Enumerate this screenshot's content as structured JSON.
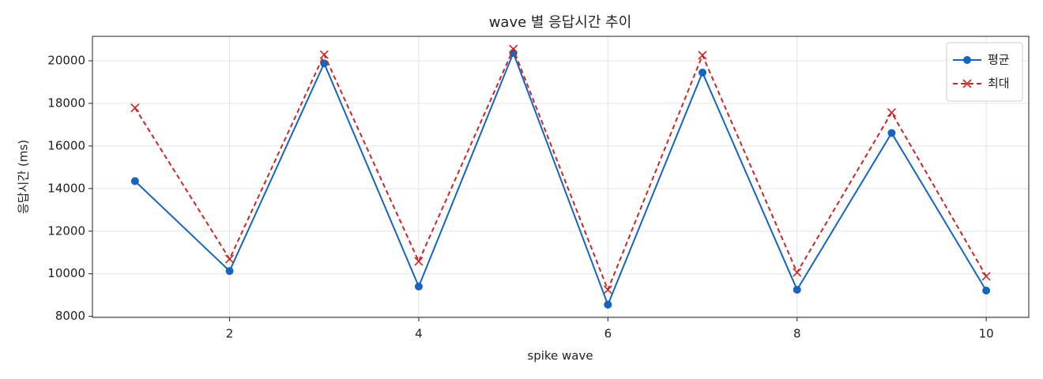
{
  "chart_data": {
    "type": "line",
    "title": "wave 별 응답시간 추이",
    "x_label": "spike wave",
    "y_label": "응답시간 (ms)",
    "x": [
      1,
      2,
      3,
      4,
      5,
      6,
      7,
      8,
      9,
      10
    ],
    "series": [
      {
        "name": "평균",
        "color": "#1565c0",
        "marker": "circle",
        "dashed": false,
        "values": [
          14350,
          10130,
          19880,
          9400,
          20370,
          8550,
          19450,
          9250,
          16610,
          9210
        ]
      },
      {
        "name": "최대",
        "color": "#c62828",
        "marker": "x",
        "dashed": true,
        "values": [
          17790,
          10690,
          20290,
          10580,
          20550,
          9250,
          20260,
          10060,
          17570,
          9880
        ]
      }
    ],
    "xlim": [
      0.55,
      10.45
    ],
    "xticks": [
      2,
      4,
      6,
      8,
      10
    ],
    "ylim": [
      7950,
      21150
    ],
    "yticks": [
      8000,
      10000,
      12000,
      14000,
      16000,
      18000,
      20000
    ],
    "grid": true,
    "legend": "upper-right"
  }
}
